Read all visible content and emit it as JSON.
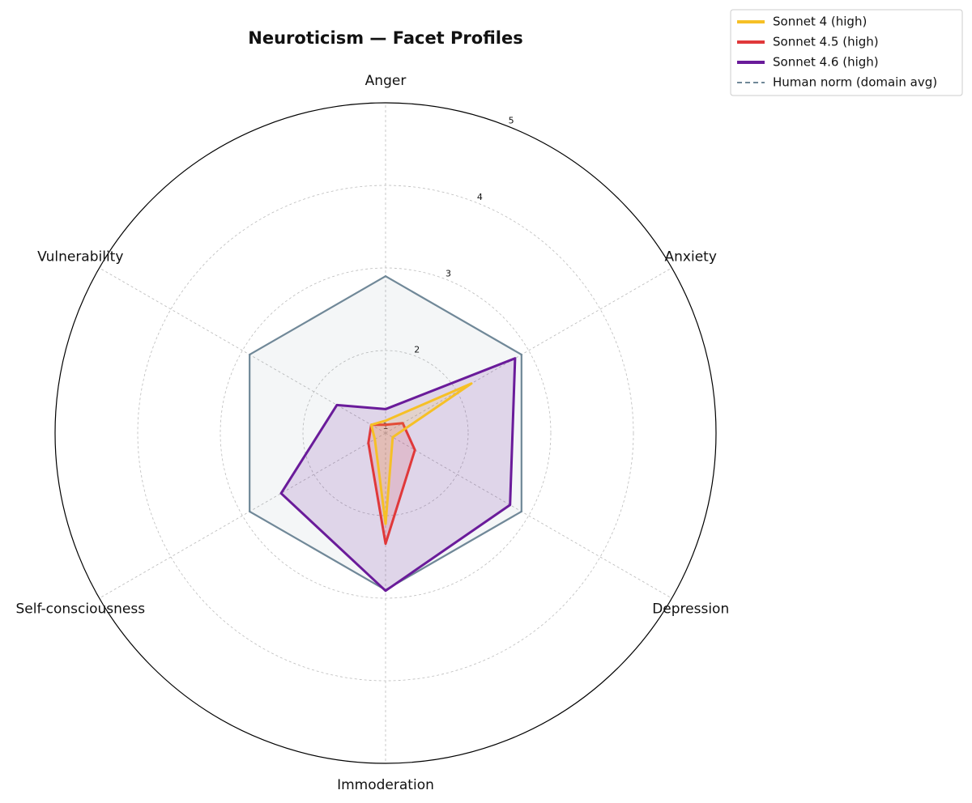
{
  "chart_data": {
    "type": "radar",
    "title": "Neuroticism — Facet Profiles",
    "categories": [
      "Anger",
      "Anxiety",
      "Depression",
      "Immoderation",
      "Self-consciousness",
      "Vulnerability"
    ],
    "rlim": [
      1,
      5
    ],
    "rticks": [
      1,
      2,
      3,
      4,
      5
    ],
    "grid": true,
    "legend": "upper right",
    "series": [
      {
        "name": "Sonnet 4 (high)",
        "color": "#f6c026",
        "values": [
          1.15,
          2.2,
          1.1,
          2.1,
          1.15,
          1.2
        ]
      },
      {
        "name": "Sonnet 4.5 (high)",
        "color": "#e0383a",
        "values": [
          1.1,
          1.24,
          1.41,
          2.34,
          1.24,
          1.2
        ]
      },
      {
        "name": "Sonnet 4.6 (high)",
        "color": "#6a1b9a",
        "values": [
          1.29,
          2.81,
          2.74,
          2.91,
          2.46,
          1.68
        ]
      },
      {
        "name": "Human norm (domain avg)",
        "color": "#708898",
        "style": "dashed",
        "values": [
          2.9,
          2.9,
          2.9,
          2.9,
          2.9,
          2.9
        ]
      }
    ]
  }
}
